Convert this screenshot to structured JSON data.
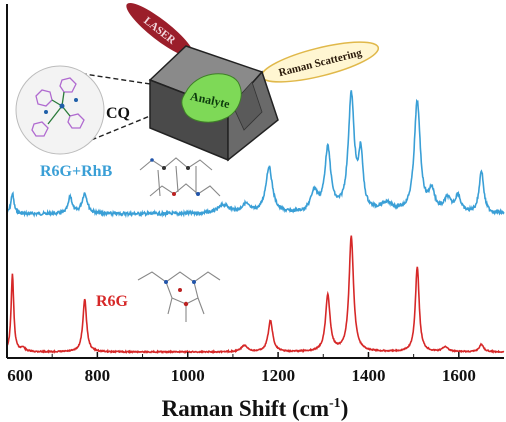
{
  "chart_data": {
    "type": "line",
    "xlabel_main": "Raman Shift (cm",
    "xlabel_sup": "-1",
    "xlabel_close": ")",
    "xlim": [
      600,
      1700
    ],
    "xticks": [
      600,
      800,
      1000,
      1200,
      1400,
      1600
    ],
    "series": [
      {
        "name": "R6G+RhB",
        "color": "#3a9fd6",
        "baseline": 0.0,
        "peaks": [
          {
            "x": 612,
            "h": 0.12,
            "w": 4
          },
          {
            "x": 740,
            "h": 0.1,
            "w": 5
          },
          {
            "x": 772,
            "h": 0.12,
            "w": 7
          },
          {
            "x": 1080,
            "h": 0.05,
            "w": 15
          },
          {
            "x": 1128,
            "h": 0.05,
            "w": 10
          },
          {
            "x": 1180,
            "h": 0.27,
            "w": 9
          },
          {
            "x": 1280,
            "h": 0.12,
            "w": 9
          },
          {
            "x": 1310,
            "h": 0.37,
            "w": 8
          },
          {
            "x": 1362,
            "h": 0.68,
            "w": 8
          },
          {
            "x": 1383,
            "h": 0.32,
            "w": 6
          },
          {
            "x": 1440,
            "h": 0.05,
            "w": 18
          },
          {
            "x": 1508,
            "h": 0.65,
            "w": 8
          },
          {
            "x": 1540,
            "h": 0.12,
            "w": 8
          },
          {
            "x": 1575,
            "h": 0.08,
            "w": 9
          },
          {
            "x": 1598,
            "h": 0.1,
            "w": 7
          },
          {
            "x": 1650,
            "h": 0.25,
            "w": 6
          }
        ]
      },
      {
        "name": "R6G",
        "color": "#d62828",
        "baseline": 0.0,
        "peaks": [
          {
            "x": 612,
            "h": 0.62,
            "w": 3.5
          },
          {
            "x": 635,
            "h": 0.03,
            "w": 6
          },
          {
            "x": 772,
            "h": 0.42,
            "w": 5
          },
          {
            "x": 1125,
            "h": 0.05,
            "w": 8
          },
          {
            "x": 1183,
            "h": 0.25,
            "w": 6
          },
          {
            "x": 1310,
            "h": 0.45,
            "w": 6
          },
          {
            "x": 1362,
            "h": 0.92,
            "w": 6
          },
          {
            "x": 1508,
            "h": 0.68,
            "w": 5
          },
          {
            "x": 1570,
            "h": 0.04,
            "w": 7
          },
          {
            "x": 1650,
            "h": 0.06,
            "w": 6
          }
        ]
      }
    ]
  },
  "labels": {
    "series_top": "R6G+RhB",
    "series_bottom": "R6G"
  },
  "annotations": {
    "laser": "LASER",
    "analyte": "Analyte",
    "raman_scattering": "Raman Scattering",
    "cq": "CQ"
  },
  "colors": {
    "axis": "#111111",
    "laser_fill": "#9b1e2a",
    "cube_dark": "#4a4a4a",
    "cube_mid": "#6a6a6a",
    "cube_light": "#8a8a8a",
    "analyte_fill": "#7ed957",
    "scatter_fill": "#fff6d2",
    "scatter_stroke": "#e0b84a"
  }
}
